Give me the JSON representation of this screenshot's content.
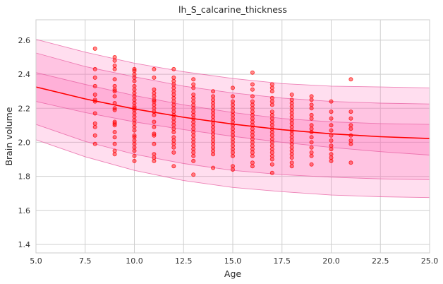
{
  "chart_data": {
    "type": "scatter",
    "title": "lh_S_calcarine_thickness",
    "xlabel": "Age",
    "ylabel": "Brain volume",
    "xlim": [
      5.0,
      25.0
    ],
    "ylim": [
      1.35,
      2.72
    ],
    "x_ticks": [
      "5.0",
      "7.5",
      "10.0",
      "12.5",
      "15.0",
      "17.5",
      "20.0",
      "22.5",
      "25.0"
    ],
    "y_ticks": [
      "1.4",
      "1.6",
      "1.8",
      "2.0",
      "2.2",
      "2.4",
      "2.6"
    ],
    "grid": true,
    "colors": {
      "points": "#ff0000",
      "trend_line": "#ff0000",
      "band_fill": "#ff69b4",
      "band_edge": "#e75ea0",
      "grid": "#cfcfcf"
    },
    "trend_line": {
      "x": [
        5,
        7.5,
        10,
        12.5,
        15,
        17.5,
        20,
        22.5,
        25
      ],
      "y": [
        2.325,
        2.255,
        2.196,
        2.147,
        2.107,
        2.074,
        2.05,
        2.033,
        2.022
      ]
    },
    "bands": [
      {
        "name": "",
        "lower": [
          2.015,
          1.915,
          1.835,
          1.775,
          1.735,
          1.71,
          1.69,
          1.68,
          1.675
        ],
        "upper": [
          2.605,
          2.53,
          2.465,
          2.415,
          2.375,
          2.345,
          2.33,
          2.325,
          2.32
        ]
      },
      {
        "name": "",
        "lower": [
          2.105,
          2.005,
          1.93,
          1.875,
          1.835,
          1.81,
          1.795,
          1.785,
          1.78
        ],
        "upper": [
          2.525,
          2.445,
          2.385,
          2.33,
          2.29,
          2.26,
          2.24,
          2.23,
          2.225
        ]
      },
      {
        "name": "",
        "lower": [
          2.24,
          2.175,
          2.12,
          2.075,
          2.035,
          2.0,
          1.97,
          1.945,
          1.925
        ],
        "upper": [
          2.41,
          2.34,
          2.275,
          2.22,
          2.175,
          2.14,
          2.12,
          2.11,
          2.105
        ]
      }
    ],
    "points": [
      [
        8,
        2.55
      ],
      [
        8,
        2.43
      ],
      [
        8,
        2.38
      ],
      [
        8,
        2.33
      ],
      [
        8,
        2.28
      ],
      [
        8,
        2.25
      ],
      [
        8,
        2.24
      ],
      [
        8,
        2.17
      ],
      [
        8,
        2.11
      ],
      [
        8,
        2.09
      ],
      [
        8,
        2.04
      ],
      [
        8,
        1.99
      ],
      [
        9,
        2.5
      ],
      [
        9,
        2.48
      ],
      [
        9,
        2.45
      ],
      [
        9,
        2.43
      ],
      [
        9,
        2.37
      ],
      [
        9,
        2.33
      ],
      [
        9,
        2.31
      ],
      [
        9,
        2.3
      ],
      [
        9,
        2.27
      ],
      [
        9,
        2.23
      ],
      [
        9,
        2.2
      ],
      [
        9,
        2.19
      ],
      [
        9,
        2.12
      ],
      [
        9,
        2.11
      ],
      [
        9,
        2.1
      ],
      [
        9,
        2.06
      ],
      [
        9,
        2.03
      ],
      [
        9,
        1.99
      ],
      [
        9,
        1.95
      ],
      [
        9,
        1.93
      ],
      [
        10,
        2.43
      ],
      [
        10,
        2.42
      ],
      [
        10,
        2.4
      ],
      [
        10,
        2.38
      ],
      [
        10,
        2.36
      ],
      [
        10,
        2.33
      ],
      [
        10,
        2.31
      ],
      [
        10,
        2.29
      ],
      [
        10,
        2.27
      ],
      [
        10,
        2.25
      ],
      [
        10,
        2.23
      ],
      [
        10,
        2.21
      ],
      [
        10,
        2.2
      ],
      [
        10,
        2.19
      ],
      [
        10,
        2.17
      ],
      [
        10,
        2.15
      ],
      [
        10,
        2.13
      ],
      [
        10,
        2.11
      ],
      [
        10,
        2.09
      ],
      [
        10,
        2.07
      ],
      [
        10,
        2.04
      ],
      [
        10,
        2.03
      ],
      [
        10,
        2.01
      ],
      [
        10,
        1.99
      ],
      [
        10,
        1.97
      ],
      [
        10,
        1.95
      ],
      [
        10,
        1.92
      ],
      [
        10,
        1.89
      ],
      [
        11,
        2.43
      ],
      [
        11,
        2.38
      ],
      [
        11,
        2.31
      ],
      [
        11,
        2.29
      ],
      [
        11,
        2.27
      ],
      [
        11,
        2.25
      ],
      [
        11,
        2.24
      ],
      [
        11,
        2.22
      ],
      [
        11,
        2.2
      ],
      [
        11,
        2.18
      ],
      [
        11,
        2.16
      ],
      [
        11,
        2.12
      ],
      [
        11,
        2.09
      ],
      [
        11,
        2.05
      ],
      [
        11,
        2.04
      ],
      [
        11,
        1.99
      ],
      [
        11,
        1.93
      ],
      [
        11,
        1.91
      ],
      [
        11,
        1.89
      ],
      [
        12,
        2.43
      ],
      [
        12,
        2.38
      ],
      [
        12,
        2.36
      ],
      [
        12,
        2.34
      ],
      [
        12,
        2.32
      ],
      [
        12,
        2.3
      ],
      [
        12,
        2.28
      ],
      [
        12,
        2.26
      ],
      [
        12,
        2.24
      ],
      [
        12,
        2.22
      ],
      [
        12,
        2.2
      ],
      [
        12,
        2.18
      ],
      [
        12,
        2.16
      ],
      [
        12,
        2.14
      ],
      [
        12,
        2.12
      ],
      [
        12,
        2.1
      ],
      [
        12,
        2.08
      ],
      [
        12,
        2.06
      ],
      [
        12,
        2.03
      ],
      [
        12,
        2.01
      ],
      [
        12,
        1.99
      ],
      [
        12,
        1.97
      ],
      [
        12,
        1.94
      ],
      [
        12,
        1.86
      ],
      [
        13,
        2.37
      ],
      [
        13,
        2.34
      ],
      [
        13,
        2.32
      ],
      [
        13,
        2.28
      ],
      [
        13,
        2.26
      ],
      [
        13,
        2.24
      ],
      [
        13,
        2.22
      ],
      [
        13,
        2.2
      ],
      [
        13,
        2.18
      ],
      [
        13,
        2.16
      ],
      [
        13,
        2.14
      ],
      [
        13,
        2.12
      ],
      [
        13,
        2.1
      ],
      [
        13,
        2.08
      ],
      [
        13,
        2.06
      ],
      [
        13,
        2.04
      ],
      [
        13,
        2.02
      ],
      [
        13,
        2.0
      ],
      [
        13,
        1.98
      ],
      [
        13,
        1.96
      ],
      [
        13,
        1.94
      ],
      [
        13,
        1.92
      ],
      [
        13,
        1.89
      ],
      [
        13,
        1.81
      ],
      [
        14,
        2.3
      ],
      [
        14,
        2.27
      ],
      [
        14,
        2.25
      ],
      [
        14,
        2.23
      ],
      [
        14,
        2.21
      ],
      [
        14,
        2.19
      ],
      [
        14,
        2.17
      ],
      [
        14,
        2.15
      ],
      [
        14,
        2.13
      ],
      [
        14,
        2.11
      ],
      [
        14,
        2.09
      ],
      [
        14,
        2.07
      ],
      [
        14,
        2.05
      ],
      [
        14,
        2.03
      ],
      [
        14,
        2.01
      ],
      [
        14,
        1.99
      ],
      [
        14,
        1.97
      ],
      [
        14,
        1.95
      ],
      [
        14,
        1.93
      ],
      [
        14,
        1.85
      ],
      [
        15,
        2.32
      ],
      [
        15,
        2.27
      ],
      [
        15,
        2.24
      ],
      [
        15,
        2.22
      ],
      [
        15,
        2.2
      ],
      [
        15,
        2.18
      ],
      [
        15,
        2.16
      ],
      [
        15,
        2.14
      ],
      [
        15,
        2.12
      ],
      [
        15,
        2.1
      ],
      [
        15,
        2.08
      ],
      [
        15,
        2.06
      ],
      [
        15,
        2.04
      ],
      [
        15,
        2.02
      ],
      [
        15,
        2.0
      ],
      [
        15,
        1.98
      ],
      [
        15,
        1.96
      ],
      [
        15,
        1.94
      ],
      [
        15,
        1.92
      ],
      [
        15,
        1.86
      ],
      [
        15,
        1.84
      ],
      [
        16,
        2.41
      ],
      [
        16,
        2.34
      ],
      [
        16,
        2.31
      ],
      [
        16,
        2.27
      ],
      [
        16,
        2.24
      ],
      [
        16,
        2.22
      ],
      [
        16,
        2.2
      ],
      [
        16,
        2.18
      ],
      [
        16,
        2.16
      ],
      [
        16,
        2.14
      ],
      [
        16,
        2.12
      ],
      [
        16,
        2.1
      ],
      [
        16,
        2.08
      ],
      [
        16,
        2.06
      ],
      [
        16,
        2.04
      ],
      [
        16,
        2.02
      ],
      [
        16,
        2.0
      ],
      [
        16,
        1.98
      ],
      [
        16,
        1.96
      ],
      [
        16,
        1.94
      ],
      [
        16,
        1.92
      ],
      [
        16,
        1.88
      ],
      [
        16,
        1.86
      ],
      [
        17,
        2.34
      ],
      [
        17,
        2.32
      ],
      [
        17,
        2.3
      ],
      [
        17,
        2.26
      ],
      [
        17,
        2.24
      ],
      [
        17,
        2.22
      ],
      [
        17,
        2.18
      ],
      [
        17,
        2.16
      ],
      [
        17,
        2.14
      ],
      [
        17,
        2.12
      ],
      [
        17,
        2.1
      ],
      [
        17,
        2.08
      ],
      [
        17,
        2.06
      ],
      [
        17,
        2.04
      ],
      [
        17,
        2.02
      ],
      [
        17,
        2.0
      ],
      [
        17,
        1.98
      ],
      [
        17,
        1.96
      ],
      [
        17,
        1.94
      ],
      [
        17,
        1.92
      ],
      [
        17,
        1.9
      ],
      [
        17,
        1.87
      ],
      [
        17,
        1.82
      ],
      [
        18,
        2.28
      ],
      [
        18,
        2.25
      ],
      [
        18,
        2.23
      ],
      [
        18,
        2.21
      ],
      [
        18,
        2.19
      ],
      [
        18,
        2.17
      ],
      [
        18,
        2.15
      ],
      [
        18,
        2.13
      ],
      [
        18,
        2.11
      ],
      [
        18,
        2.09
      ],
      [
        18,
        2.07
      ],
      [
        18,
        2.05
      ],
      [
        18,
        2.03
      ],
      [
        18,
        2.01
      ],
      [
        18,
        1.99
      ],
      [
        18,
        1.97
      ],
      [
        18,
        1.95
      ],
      [
        18,
        1.93
      ],
      [
        18,
        1.91
      ],
      [
        18,
        1.88
      ],
      [
        18,
        1.86
      ],
      [
        19,
        2.27
      ],
      [
        19,
        2.25
      ],
      [
        19,
        2.22
      ],
      [
        19,
        2.2
      ],
      [
        19,
        2.16
      ],
      [
        19,
        2.14
      ],
      [
        19,
        2.1
      ],
      [
        19,
        2.08
      ],
      [
        19,
        2.06
      ],
      [
        19,
        2.03
      ],
      [
        19,
        2.0
      ],
      [
        19,
        1.97
      ],
      [
        19,
        1.94
      ],
      [
        19,
        1.92
      ],
      [
        19,
        1.87
      ],
      [
        20,
        2.24
      ],
      [
        20,
        2.18
      ],
      [
        20,
        2.14
      ],
      [
        20,
        2.1
      ],
      [
        20,
        2.07
      ],
      [
        20,
        2.04
      ],
      [
        20,
        2.01
      ],
      [
        20,
        1.98
      ],
      [
        20,
        1.96
      ],
      [
        20,
        1.93
      ],
      [
        20,
        1.91
      ],
      [
        20,
        1.89
      ],
      [
        21,
        2.37
      ],
      [
        21,
        2.18
      ],
      [
        21,
        2.14
      ],
      [
        21,
        2.1
      ],
      [
        21,
        2.08
      ],
      [
        21,
        2.04
      ],
      [
        21,
        2.01
      ],
      [
        21,
        1.99
      ],
      [
        21,
        1.88
      ]
    ]
  }
}
